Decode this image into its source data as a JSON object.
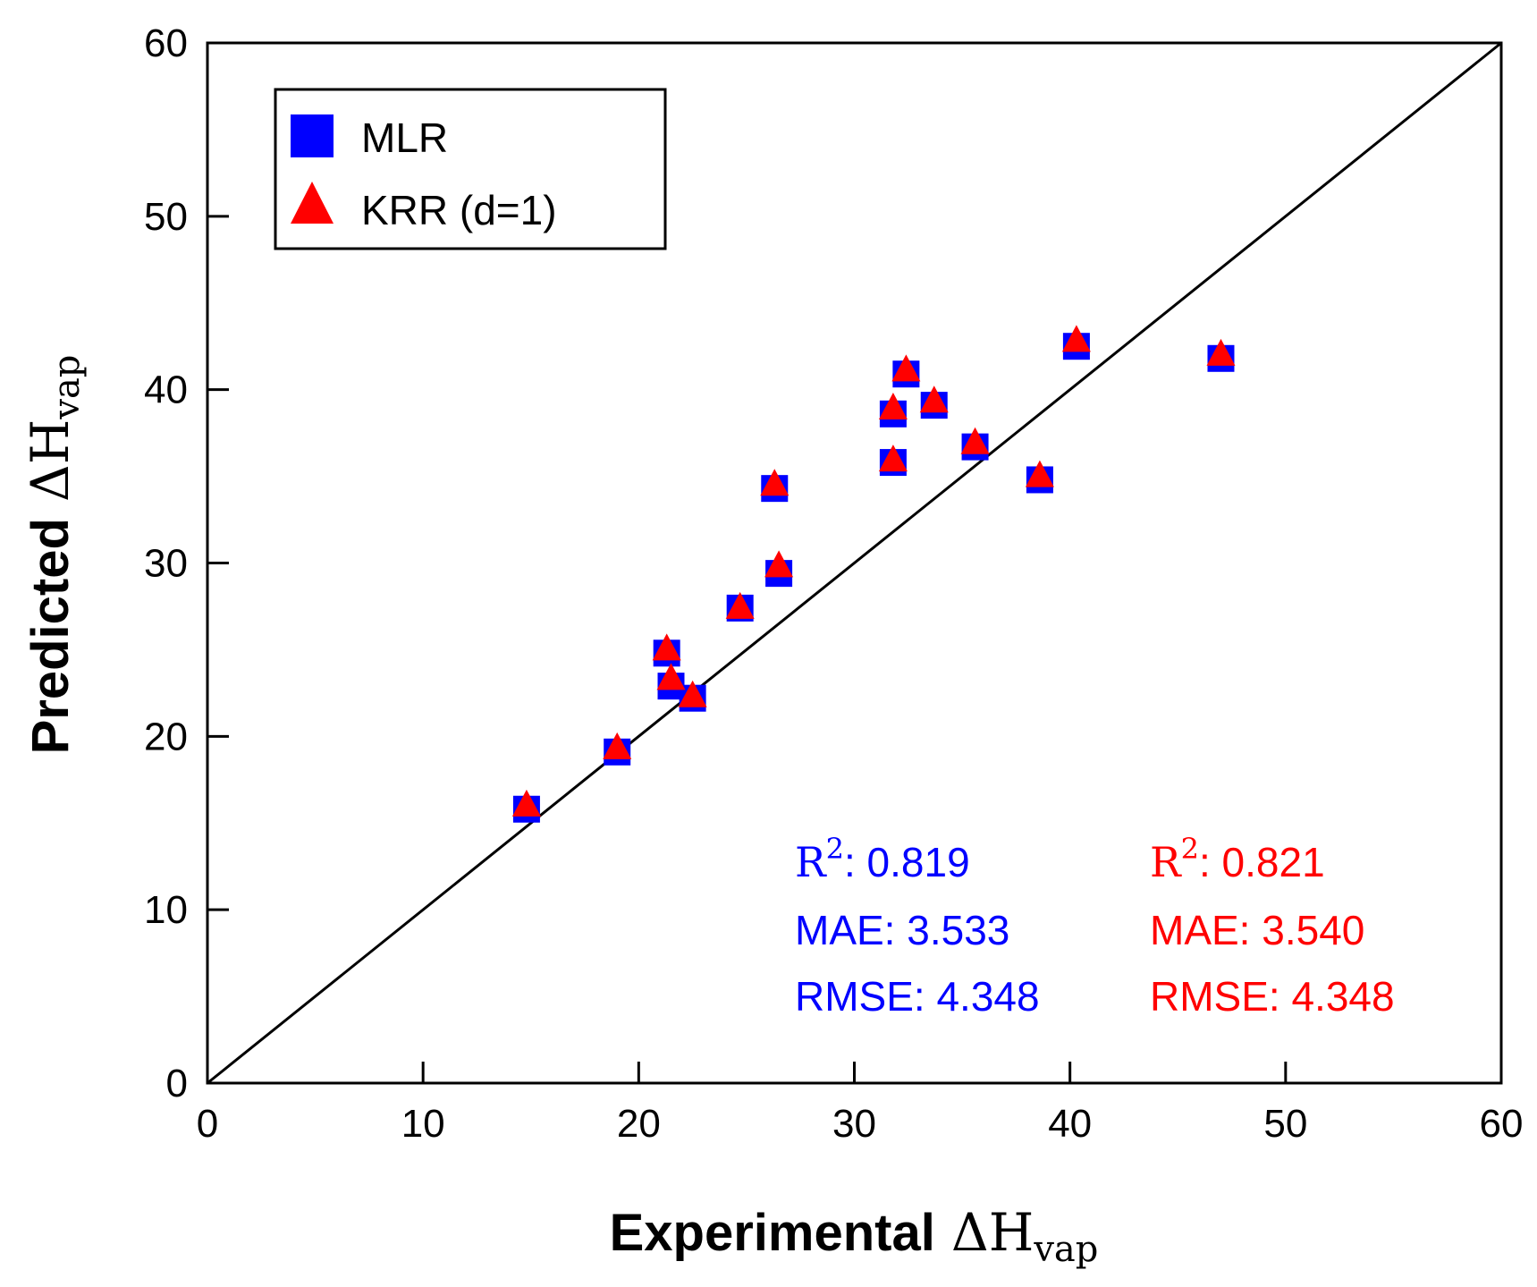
{
  "chart_data": {
    "type": "scatter",
    "title": "",
    "xlabel": {
      "prefix": "Experimental",
      "symbol": "ΔH",
      "subscript": "vap"
    },
    "ylabel": {
      "prefix": "Predicted",
      "symbol": "ΔH",
      "subscript": "vap"
    },
    "xlim": [
      0,
      60
    ],
    "ylim": [
      0,
      60
    ],
    "xticks": [
      "0",
      "10",
      "20",
      "30",
      "40",
      "50",
      "60"
    ],
    "yticks": [
      "0",
      "10",
      "20",
      "30",
      "40",
      "50",
      "60"
    ],
    "grid": false,
    "identity_line": true,
    "legend_position": "top-left",
    "series": [
      {
        "name": "MLR",
        "marker": "square",
        "color": "#0000ff",
        "points": [
          {
            "x": 14.8,
            "y": 15.8
          },
          {
            "x": 19.0,
            "y": 19.1
          },
          {
            "x": 21.3,
            "y": 24.8
          },
          {
            "x": 21.5,
            "y": 22.9
          },
          {
            "x": 22.5,
            "y": 22.2
          },
          {
            "x": 24.7,
            "y": 27.4
          },
          {
            "x": 26.3,
            "y": 34.3
          },
          {
            "x": 26.5,
            "y": 29.4
          },
          {
            "x": 31.8,
            "y": 38.6
          },
          {
            "x": 31.8,
            "y": 35.8
          },
          {
            "x": 32.4,
            "y": 40.9
          },
          {
            "x": 33.7,
            "y": 39.1
          },
          {
            "x": 35.6,
            "y": 36.7
          },
          {
            "x": 38.6,
            "y": 34.8
          },
          {
            "x": 40.3,
            "y": 42.5
          },
          {
            "x": 47.0,
            "y": 41.8
          }
        ]
      },
      {
        "name": "KRR (d=1)",
        "marker": "triangle",
        "color": "#ff0000",
        "points": [
          {
            "x": 14.8,
            "y": 16.0
          },
          {
            "x": 19.0,
            "y": 19.3
          },
          {
            "x": 21.3,
            "y": 25.0
          },
          {
            "x": 21.5,
            "y": 23.3
          },
          {
            "x": 22.5,
            "y": 22.3
          },
          {
            "x": 24.7,
            "y": 27.4
          },
          {
            "x": 26.3,
            "y": 34.5
          },
          {
            "x": 26.5,
            "y": 29.8
          },
          {
            "x": 31.8,
            "y": 38.9
          },
          {
            "x": 31.8,
            "y": 35.9
          },
          {
            "x": 32.4,
            "y": 41.1
          },
          {
            "x": 33.7,
            "y": 39.3
          },
          {
            "x": 35.6,
            "y": 36.9
          },
          {
            "x": 38.6,
            "y": 35.0
          },
          {
            "x": 40.3,
            "y": 42.8
          },
          {
            "x": 47.0,
            "y": 42.0
          }
        ]
      }
    ],
    "annotations": {
      "mlr": {
        "color": "#0000ff",
        "r2_label": "R",
        "r2_sup": "2",
        "r2_value": ": 0.819",
        "mae": "MAE: 3.533",
        "rmse": "RMSE: 4.348"
      },
      "krr": {
        "color": "#ff0000",
        "r2_label": "R",
        "r2_sup": "2",
        "r2_value": ": 0.821",
        "mae": "MAE: 3.540",
        "rmse": "RMSE: 4.348"
      }
    }
  }
}
